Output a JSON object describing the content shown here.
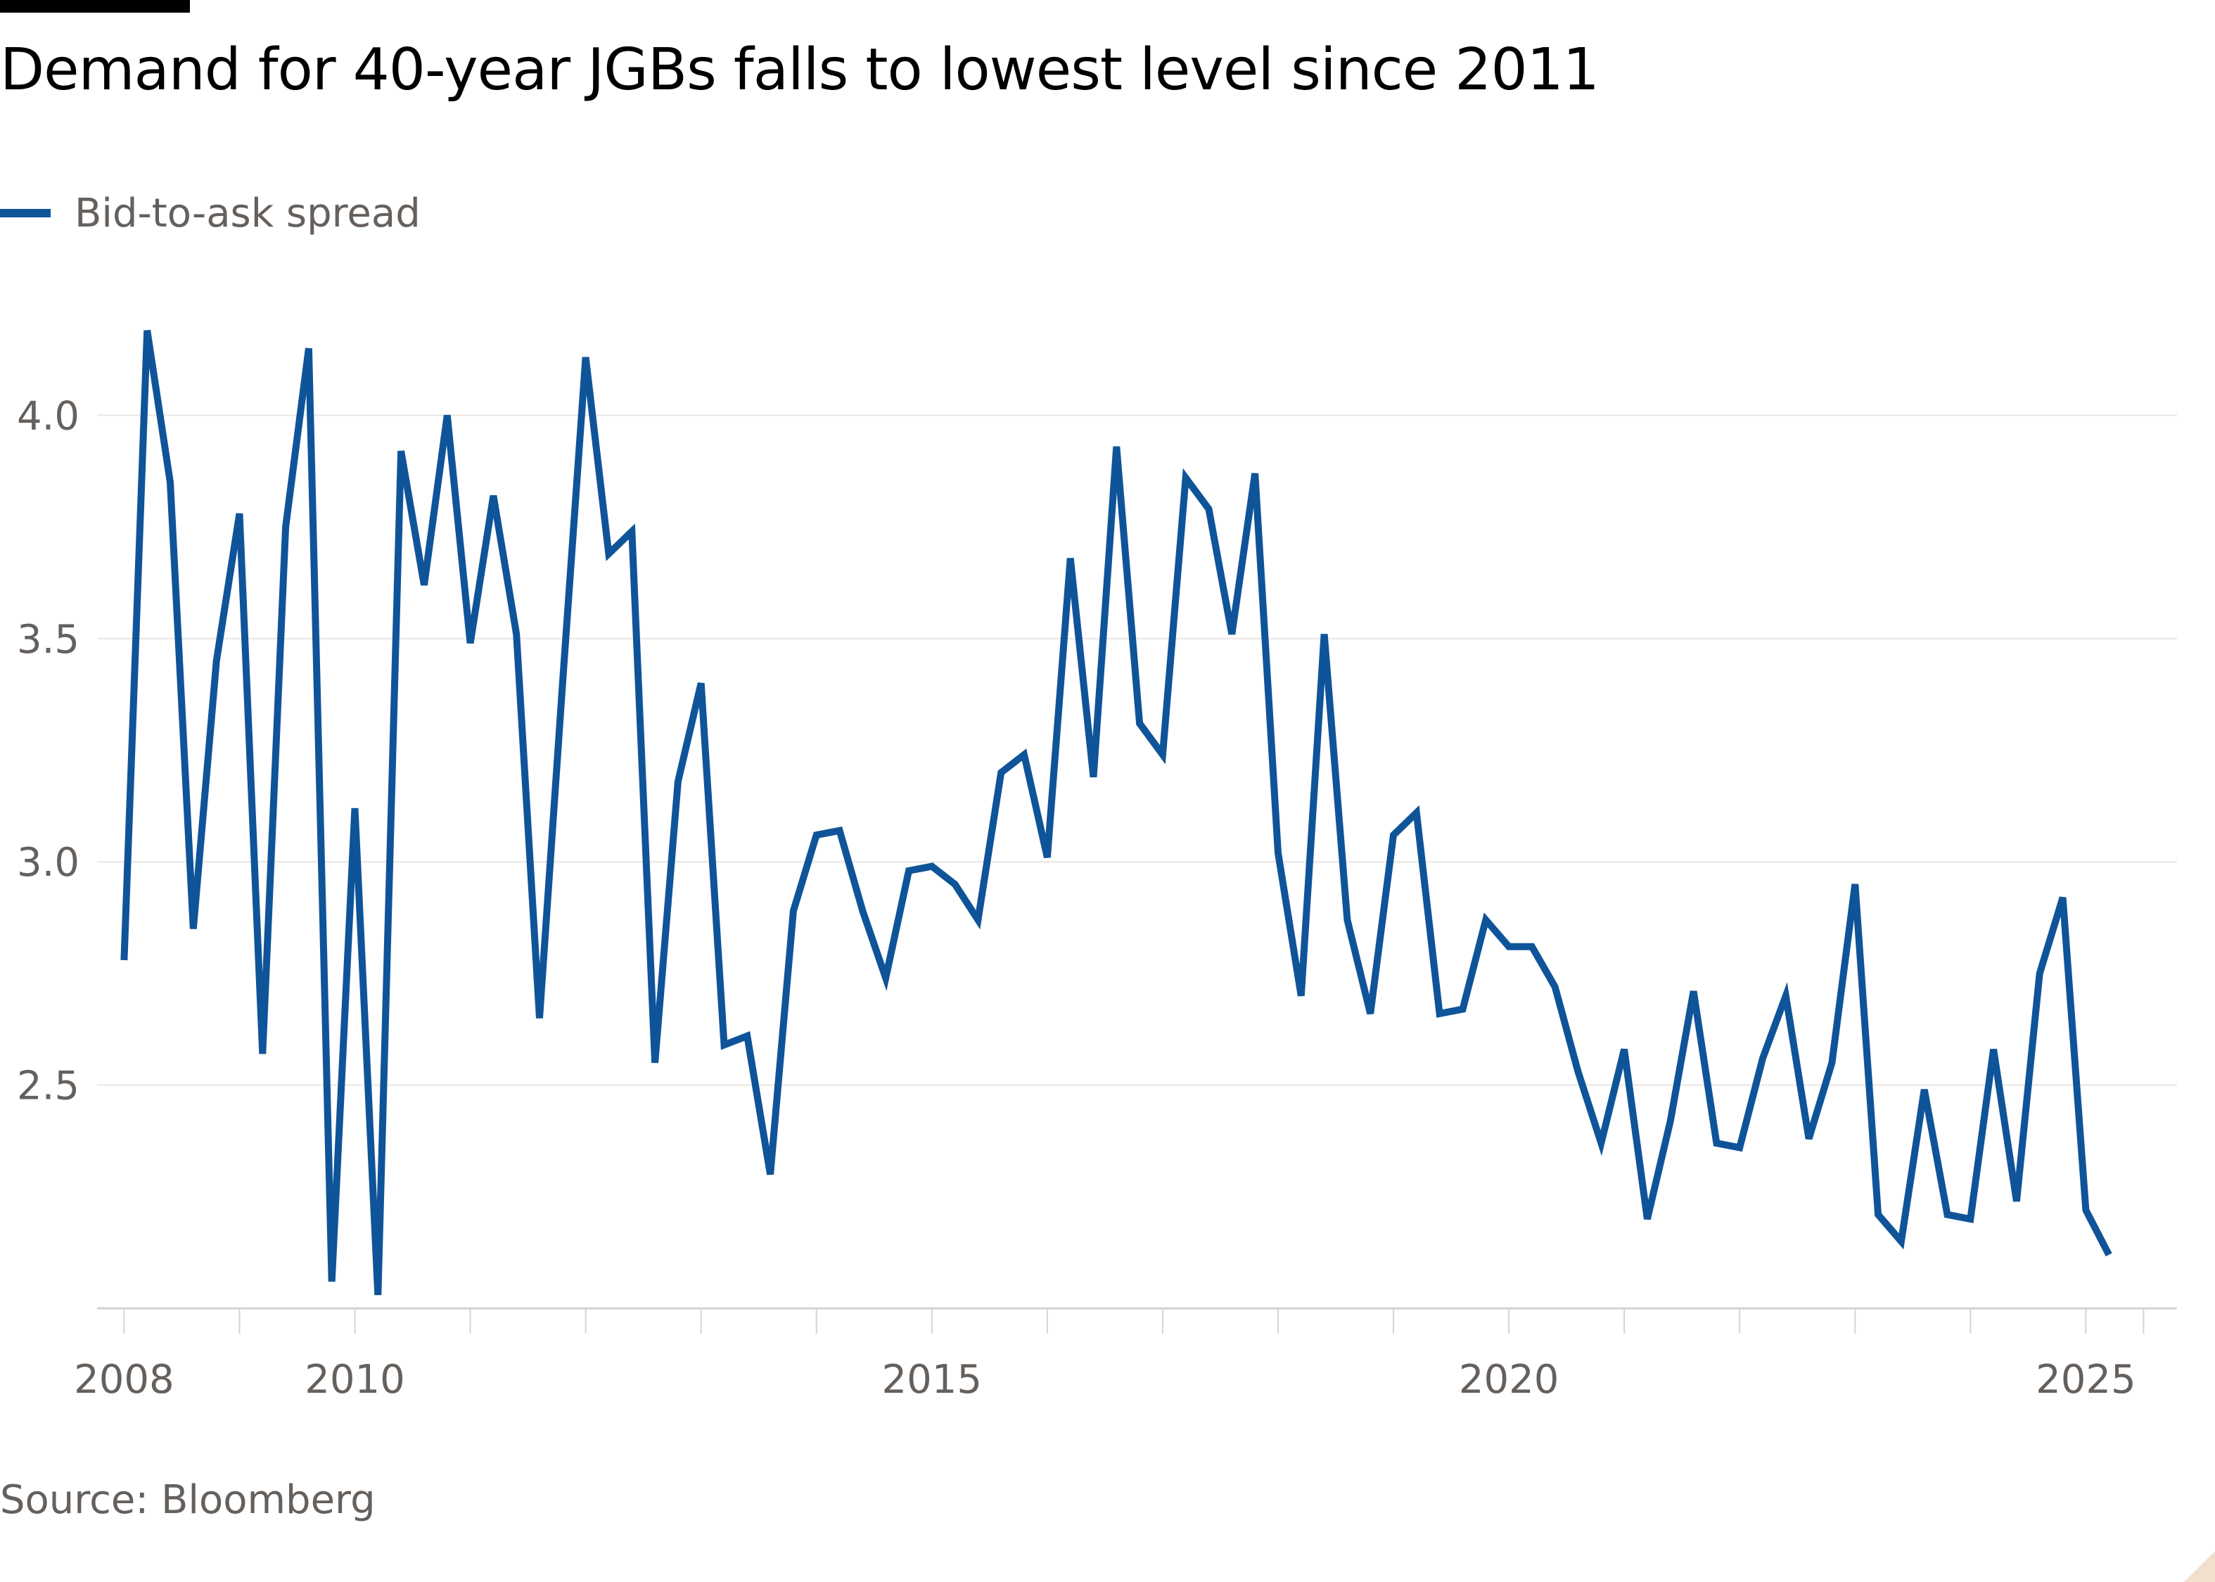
{
  "title": "Demand for 40-year JGBs falls to lowest level since 2011",
  "source": "Source: Bloomberg",
  "colors": {
    "series": "#0f5499",
    "text": "#66605c",
    "grid": "#e9e6e2",
    "axis": "#d8d3cf"
  },
  "chart_data": {
    "type": "line",
    "title": "Demand for 40-year JGBs falls to lowest level since 2011",
    "xlabel": "",
    "ylabel": "",
    "xlim": [
      2007.9,
      2025.65
    ],
    "ylim": [
      2.0,
      4.3
    ],
    "y_ticks": [
      2.5,
      3.0,
      3.5,
      4.0
    ],
    "y_tick_labels": [
      "2.5",
      "3.0",
      "3.5",
      "4.0"
    ],
    "x_tick_labels": [
      {
        "value": 2008,
        "label": "2008"
      },
      {
        "value": 2010,
        "label": "2010"
      },
      {
        "value": 2015,
        "label": "2015"
      },
      {
        "value": 2020,
        "label": "2020"
      },
      {
        "value": 2025,
        "label": "2025"
      }
    ],
    "grid": true,
    "legend": "top-left",
    "series": [
      {
        "name": "Bid-to-ask spread",
        "points": [
          [
            2008.0,
            2.78
          ],
          [
            2008.2,
            4.19
          ],
          [
            2008.4,
            3.85
          ],
          [
            2008.6,
            2.85
          ],
          [
            2008.8,
            3.45
          ],
          [
            2009.0,
            3.78
          ],
          [
            2009.2,
            2.57
          ],
          [
            2009.4,
            3.75
          ],
          [
            2009.6,
            4.15
          ],
          [
            2009.8,
            2.06
          ],
          [
            2010.0,
            3.12
          ],
          [
            2010.2,
            2.03
          ],
          [
            2010.4,
            3.92
          ],
          [
            2010.6,
            3.62
          ],
          [
            2010.8,
            4.0
          ],
          [
            2011.0,
            3.49
          ],
          [
            2011.2,
            3.82
          ],
          [
            2011.4,
            3.51
          ],
          [
            2011.6,
            2.65
          ],
          [
            2011.8,
            3.4
          ],
          [
            2012.0,
            4.13
          ],
          [
            2012.2,
            3.69
          ],
          [
            2012.4,
            3.74
          ],
          [
            2012.6,
            2.55
          ],
          [
            2012.8,
            3.18
          ],
          [
            2013.0,
            3.4
          ],
          [
            2013.2,
            2.59
          ],
          [
            2013.4,
            2.61
          ],
          [
            2013.6,
            2.3
          ],
          [
            2013.8,
            2.89
          ],
          [
            2014.0,
            3.06
          ],
          [
            2014.2,
            3.07
          ],
          [
            2014.4,
            2.89
          ],
          [
            2014.6,
            2.74
          ],
          [
            2014.8,
            2.98
          ],
          [
            2015.0,
            2.99
          ],
          [
            2015.2,
            2.95
          ],
          [
            2015.4,
            2.87
          ],
          [
            2015.6,
            3.2
          ],
          [
            2015.8,
            3.24
          ],
          [
            2016.0,
            3.01
          ],
          [
            2016.2,
            3.68
          ],
          [
            2016.4,
            3.19
          ],
          [
            2016.6,
            3.93
          ],
          [
            2016.8,
            3.31
          ],
          [
            2017.0,
            3.24
          ],
          [
            2017.2,
            3.86
          ],
          [
            2017.4,
            3.79
          ],
          [
            2017.6,
            3.51
          ],
          [
            2017.8,
            3.87
          ],
          [
            2018.0,
            3.02
          ],
          [
            2018.2,
            2.7
          ],
          [
            2018.4,
            3.51
          ],
          [
            2018.6,
            2.87
          ],
          [
            2018.8,
            2.66
          ],
          [
            2019.0,
            3.06
          ],
          [
            2019.2,
            3.11
          ],
          [
            2019.4,
            2.66
          ],
          [
            2019.6,
            2.67
          ],
          [
            2019.8,
            2.87
          ],
          [
            2020.0,
            2.81
          ],
          [
            2020.2,
            2.81
          ],
          [
            2020.4,
            2.72
          ],
          [
            2020.6,
            2.53
          ],
          [
            2020.8,
            2.37
          ],
          [
            2021.0,
            2.58
          ],
          [
            2021.2,
            2.2
          ],
          [
            2021.4,
            2.42
          ],
          [
            2021.6,
            2.71
          ],
          [
            2021.8,
            2.37
          ],
          [
            2022.0,
            2.36
          ],
          [
            2022.2,
            2.56
          ],
          [
            2022.4,
            2.7
          ],
          [
            2022.6,
            2.38
          ],
          [
            2022.8,
            2.55
          ],
          [
            2023.0,
            2.95
          ],
          [
            2023.2,
            2.21
          ],
          [
            2023.4,
            2.15
          ],
          [
            2023.6,
            2.49
          ],
          [
            2023.8,
            2.21
          ],
          [
            2024.0,
            2.2
          ],
          [
            2024.2,
            2.58
          ],
          [
            2024.4,
            2.24
          ],
          [
            2024.6,
            2.75
          ],
          [
            2024.8,
            2.92
          ],
          [
            2025.0,
            2.22
          ],
          [
            2025.2,
            2.12
          ]
        ]
      }
    ]
  }
}
